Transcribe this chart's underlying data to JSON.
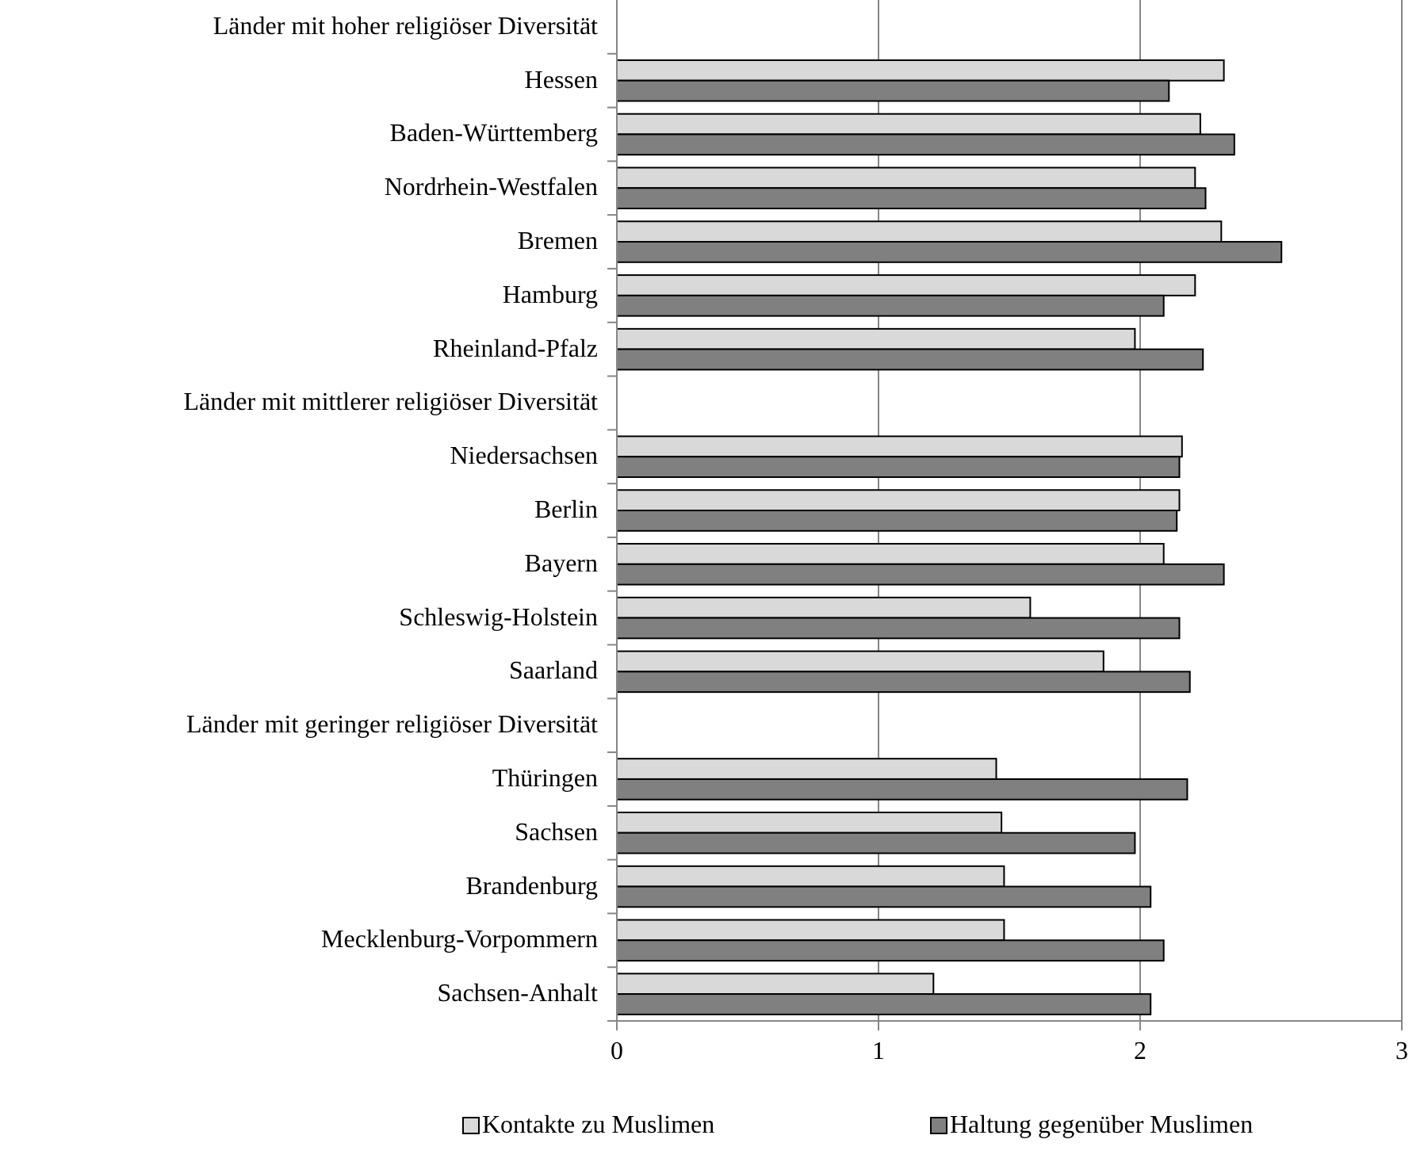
{
  "chart_data": {
    "type": "bar",
    "orientation": "horizontal",
    "categories": [
      "Länder mit hoher religiöser Diversität",
      "Hessen",
      "Baden-Württemberg",
      "Nordrhein-Westfalen",
      "Bremen",
      "Hamburg",
      "Rheinland-Pfalz",
      "Länder mit mittlerer religiöser Diversität",
      "Niedersachsen",
      "Berlin",
      "Bayern",
      "Schleswig-Holstein",
      "Saarland",
      "Länder mit geringer religiöser Diversität",
      "Thüringen",
      "Sachsen",
      "Brandenburg",
      "Mecklenburg-Vorpommern",
      "Sachsen-Anhalt"
    ],
    "series": [
      {
        "name": "Kontakte zu Muslimen",
        "color": "#d9d9d9",
        "values": [
          null,
          2.32,
          2.23,
          2.21,
          2.31,
          2.21,
          1.98,
          null,
          2.16,
          2.15,
          2.09,
          1.58,
          1.86,
          null,
          1.45,
          1.47,
          1.48,
          1.48,
          1.21
        ]
      },
      {
        "name": "Haltung gegenüber Muslimen",
        "color": "#808080",
        "values": [
          null,
          2.11,
          2.36,
          2.25,
          2.54,
          2.09,
          2.24,
          null,
          2.15,
          2.14,
          2.32,
          2.15,
          2.19,
          null,
          2.18,
          1.98,
          2.04,
          2.09,
          2.04
        ]
      }
    ],
    "xlim": [
      0,
      3
    ],
    "xticks": [
      0,
      1,
      2,
      3
    ],
    "grid": "x",
    "legend": "bottom"
  }
}
